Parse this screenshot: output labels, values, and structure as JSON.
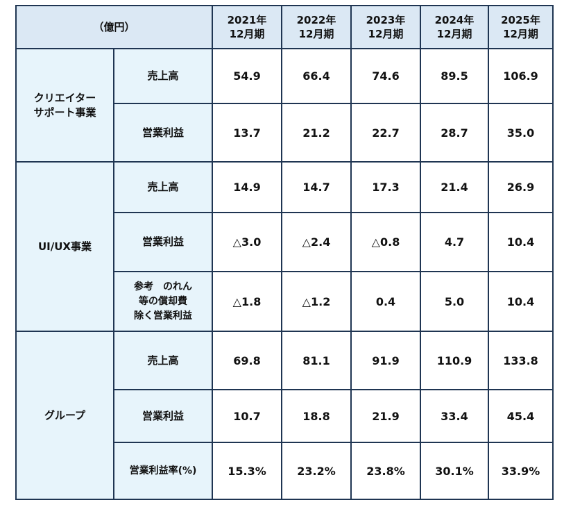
{
  "table": {
    "unit": "（億円）",
    "years": [
      [
        "2021年",
        "12月期"
      ],
      [
        "2022年",
        "12月期"
      ],
      [
        "2023年",
        "12月期"
      ],
      [
        "2024年",
        "12月期"
      ],
      [
        "2025年",
        "12月期"
      ]
    ],
    "groups": [
      {
        "name": [
          "クリエイター",
          "サポート事業"
        ],
        "rows": [
          {
            "label": [
              "売上高"
            ],
            "values": [
              "54.9",
              "66.4",
              "74.6",
              "89.5",
              "106.9"
            ]
          },
          {
            "label": [
              "営業利益"
            ],
            "values": [
              "13.7",
              "21.2",
              "22.7",
              "28.7",
              "35.0"
            ]
          }
        ]
      },
      {
        "name": [
          "UI/UX事業"
        ],
        "rows": [
          {
            "label": [
              "売上高"
            ],
            "values": [
              "14.9",
              "14.7",
              "17.3",
              "21.4",
              "26.9"
            ]
          },
          {
            "label": [
              "営業利益"
            ],
            "values": [
              "△3.0",
              "△2.4",
              "△0.8",
              "4.7",
              "10.4"
            ]
          },
          {
            "label": [
              "参考　のれん",
              "等の償却費",
              "除く営業利益"
            ],
            "values": [
              "△1.8",
              "△1.2",
              "0.4",
              "5.0",
              "10.4"
            ]
          }
        ]
      },
      {
        "name": [
          "グループ"
        ],
        "rows": [
          {
            "label": [
              "売上高"
            ],
            "values": [
              "69.8",
              "81.1",
              "91.9",
              "110.9",
              "133.8"
            ]
          },
          {
            "label": [
              "営業利益"
            ],
            "values": [
              "10.7",
              "18.8",
              "21.9",
              "33.4",
              "45.4"
            ]
          },
          {
            "label": [
              "営業利益率(%)"
            ],
            "values": [
              "15.3%",
              "23.2%",
              "23.8%",
              "30.1%",
              "33.9%"
            ]
          }
        ]
      }
    ]
  }
}
